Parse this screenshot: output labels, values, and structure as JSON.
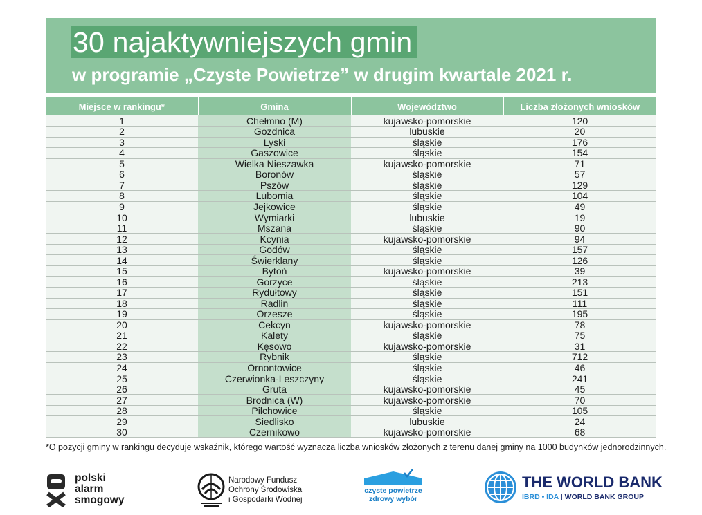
{
  "header": {
    "title": "30 najaktywniejszych gmin",
    "subtitle": "w programie „Czyste Powietrze” w drugim kwartale 2021 r."
  },
  "table": {
    "columns": [
      "Miejsce w rankingu*",
      "Gmina",
      "Województwo",
      "Liczba złożonych wniosków"
    ],
    "rows": [
      [
        "1",
        "Chełmno (M)",
        "kujawsko-pomorskie",
        "120"
      ],
      [
        "2",
        "Gozdnica",
        "lubuskie",
        "20"
      ],
      [
        "3",
        "Lyski",
        "śląskie",
        "176"
      ],
      [
        "4",
        "Gaszowice",
        "śląskie",
        "154"
      ],
      [
        "5",
        "Wielka Nieszawka",
        "kujawsko-pomorskie",
        "71"
      ],
      [
        "6",
        "Boronów",
        "śląskie",
        "57"
      ],
      [
        "7",
        "Pszów",
        "śląskie",
        "129"
      ],
      [
        "8",
        "Lubomia",
        "śląskie",
        "104"
      ],
      [
        "9",
        "Jejkowice",
        "śląskie",
        "49"
      ],
      [
        "10",
        "Wymiarki",
        "lubuskie",
        "19"
      ],
      [
        "11",
        "Mszana",
        "śląskie",
        "90"
      ],
      [
        "12",
        "Kcynia",
        "kujawsko-pomorskie",
        "94"
      ],
      [
        "13",
        "Godów",
        "śląskie",
        "157"
      ],
      [
        "14",
        "Świerklany",
        "śląskie",
        "126"
      ],
      [
        "15",
        "Bytoń",
        "kujawsko-pomorskie",
        "39"
      ],
      [
        "16",
        "Gorzyce",
        "śląskie",
        "213"
      ],
      [
        "17",
        "Rydułtowy",
        "śląskie",
        "151"
      ],
      [
        "18",
        "Radlin",
        "śląskie",
        "111"
      ],
      [
        "19",
        "Orzesze",
        "śląskie",
        "195"
      ],
      [
        "20",
        "Cekcyn",
        "kujawsko-pomorskie",
        "78"
      ],
      [
        "21",
        "Kalety",
        "śląskie",
        "75"
      ],
      [
        "22",
        "Kęsowo",
        "kujawsko-pomorskie",
        "31"
      ],
      [
        "23",
        "Rybnik",
        "śląskie",
        "712"
      ],
      [
        "24",
        "Ornontowice",
        "śląskie",
        "46"
      ],
      [
        "25",
        "Czerwionka-Leszczyny",
        "śląskie",
        "241"
      ],
      [
        "26",
        "Gruta",
        "kujawsko-pomorskie",
        "45"
      ],
      [
        "27",
        "Brodnica (W)",
        "kujawsko-pomorskie",
        "70"
      ],
      [
        "28",
        "Pilchowice",
        "śląskie",
        "105"
      ],
      [
        "29",
        "Siedlisko",
        "lubuskie",
        "24"
      ],
      [
        "30",
        "Czernikowo",
        "kujawsko-pomorskie",
        "68"
      ]
    ]
  },
  "footnote": "*O pozycji gminy w rankingu decyduje wskaźnik, którego wartość wyznacza liczba wniosków złożonych z terenu danej gminy na 1000 budynków jednorodzinnych.",
  "logos": {
    "psa": {
      "line1": "polski",
      "line2": "alarm",
      "line3": "smogowy",
      "icon": "psa-logo-icon"
    },
    "nfosigw": {
      "line1": "Narodowy Fundusz",
      "line2": "Ochrony Środowiska",
      "line3": "i Gospodarki Wodnej",
      "icon": "nfosigw-logo-icon"
    },
    "cp": {
      "line1": "czyste powietrze",
      "line2": "zdrowy wybór",
      "icon": "house-check-icon",
      "color": "#1a7fc6"
    },
    "worldbank": {
      "name": "THE WORLD BANK",
      "sub_left": "IBRD • IDA",
      "sub_sep": "|",
      "sub_right": "WORLD BANK GROUP",
      "icon": "globe-icon",
      "color": "#1a2a6c"
    }
  },
  "colors": {
    "banner": "#8cc49e",
    "title_highlight": "#5aa673",
    "gmina_column": "#c5dfcc",
    "row_background": "#f0f5f1"
  }
}
